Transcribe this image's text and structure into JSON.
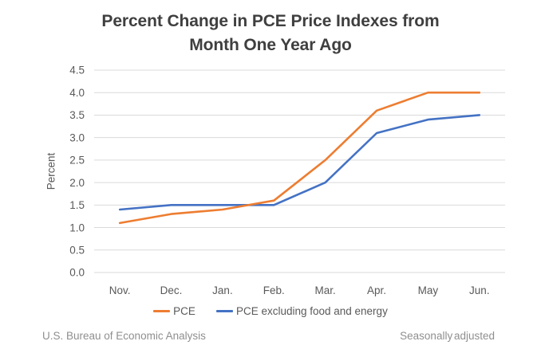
{
  "chart": {
    "title": "Percent Change in PCE Price Indexes from\nMonth One Year Ago",
    "ylabel": "Percent",
    "footer_left": "U.S. Bureau of Economic Analysis",
    "footer_right": "Seasonally adjusted"
  },
  "chart_data": {
    "type": "line",
    "title": "Percent Change in PCE Price Indexes from Month One Year Ago",
    "xlabel": "",
    "ylabel": "Percent",
    "categories": [
      "Nov.",
      "Dec.",
      "Jan.",
      "Feb.",
      "Mar.",
      "Apr.",
      "May",
      "Jun."
    ],
    "series": [
      {
        "name": "PCE",
        "color": "#ED7D31",
        "values": [
          1.1,
          1.3,
          1.4,
          1.6,
          2.5,
          3.6,
          4.0,
          4.0
        ]
      },
      {
        "name": "PCE excluding food and energy",
        "color": "#4472C4",
        "values": [
          1.4,
          1.5,
          1.5,
          1.5,
          2.0,
          3.1,
          3.4,
          3.5
        ]
      }
    ],
    "ylim": [
      0.0,
      4.5
    ],
    "y_step": 0.5,
    "grid": true,
    "gridline_color": "#D9D9D9",
    "tick_label_color": "#595959",
    "legend_position": "bottom"
  }
}
